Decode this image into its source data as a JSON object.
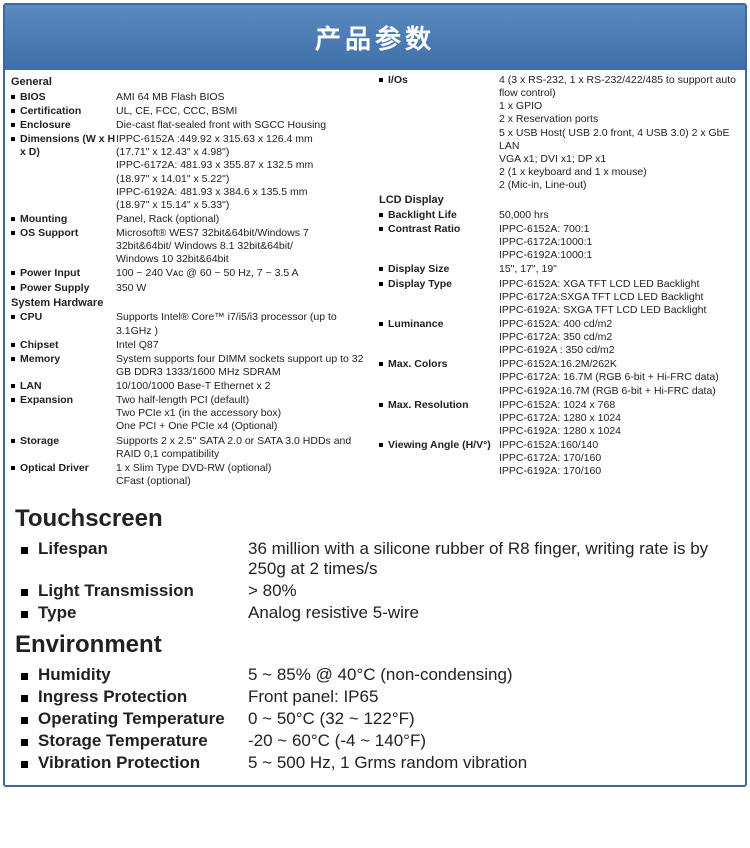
{
  "header": "产品参数",
  "colors": {
    "headerBg": "#4a7ab5",
    "border": "#3b6aa0",
    "text": "#222222"
  },
  "left": {
    "general": {
      "title": "General",
      "rows": [
        {
          "label": "BIOS",
          "val": [
            "AMI 64 MB Flash BIOS"
          ]
        },
        {
          "label": "Certification",
          "val": [
            "UL, CE, FCC, CCC, BSMI"
          ]
        },
        {
          "label": "Enclosure",
          "val": [
            "Die-cast flat-sealed front with SGCC Housing"
          ]
        },
        {
          "label": "Dimensions (W x H x D)",
          "val": [
            "IPPC-6152A :449.92 x 315.63 x 126.4 mm",
            "(17.71\" x 12.43\" x 4.98\")",
            "IPPC-6172A: 481.93 x 355.87 x 132.5 mm",
            "(18.97\" x 14.01\" x 5.22\")",
            "IPPC-6192A: 481.93 x 384.6 x 135.5 mm",
            "(18.97\" x 15.14\" x 5.33\")"
          ]
        },
        {
          "label": "Mounting",
          "val": [
            "Panel, Rack (optional)"
          ]
        },
        {
          "label": "OS Support",
          "val": [
            "Microsoft® WES7 32bit&64bit/Windows 7",
            "32bit&64bit/ Windows 8.1 32bit&64bit/",
            "Windows 10 32bit&64bit"
          ]
        },
        {
          "label": "Power Input",
          "val": [
            "100 ~ 240 Vᴀᴄ @ 60 ~ 50 Hz, 7 ~ 3.5 A"
          ]
        },
        {
          "label": "Power Supply",
          "val": [
            "350 W"
          ]
        }
      ]
    },
    "system": {
      "title": "System Hardware",
      "rows": [
        {
          "label": "CPU",
          "val": [
            "Supports Intel® Core™ i7/i5/i3 processor (up to 3.1GHz )"
          ]
        },
        {
          "label": "Chipset",
          "val": [
            "Intel Q87"
          ]
        },
        {
          "label": "Memory",
          "val": [
            "System supports four DIMM sockets support up to 32 GB DDR3 1333/1600 MHz SDRAM"
          ]
        },
        {
          "label": "LAN",
          "val": [
            "10/100/1000 Base-T Ethernet x 2"
          ]
        },
        {
          "label": "Expansion",
          "val": [
            "Two half-length PCI (default)",
            "Two PCIe x1 (in the accessory box)",
            "One PCI + One PCIe x4 (Optional)"
          ]
        },
        {
          "label": "Storage",
          "val": [
            "Supports 2 x 2.5\" SATA 2.0 or SATA 3.0 HDDs and RAID 0,1 compatibility"
          ]
        },
        {
          "label": "Optical Driver",
          "val": [
            "1 x Slim Type DVD-RW (optional)",
            "CFast (optional)"
          ]
        }
      ]
    }
  },
  "right": {
    "io": {
      "rows": [
        {
          "label": "I/Os",
          "val": [
            "4 (3 x RS-232, 1 x RS-232/422/485 to support auto flow control)",
            "1 x GPIO",
            "2 x Reservation ports",
            "5 x USB Host( USB 2.0 front, 4 USB 3.0) 2 x GbE LAN",
            "VGA x1; DVI x1; DP x1",
            "2 (1 x keyboard and 1 x mouse)",
            "2 (Mic-in, Line-out)"
          ]
        }
      ]
    },
    "lcd": {
      "title": "LCD Display",
      "rows": [
        {
          "label": "Backlight Life",
          "val": [
            "50,000 hrs"
          ]
        },
        {
          "label": "Contrast Ratio",
          "val": [
            "IPPC-6152A: 700:1",
            "IPPC-6172A:1000:1",
            "IPPC-6192A:1000:1"
          ]
        },
        {
          "label": "Display Size",
          "val": [
            "15\", 17\", 19\""
          ]
        },
        {
          "label": "Display Type",
          "val": [
            "IPPC-6152A: XGA TFT LCD LED Backlight",
            "IPPC-6172A:SXGA TFT LCD LED Backlight",
            "IPPC-6192A: SXGA TFT LCD LED Backlight"
          ]
        },
        {
          "label": "Luminance",
          "val": [
            "IPPC-6152A: 400 cd/m2",
            "IPPC-6172A: 350 cd/m2",
            "IPPC-6192A : 350 cd/m2"
          ]
        },
        {
          "label": "Max. Colors",
          "val": [
            "IPPC-6152A:16.2M/262K",
            "IPPC-6172A: 16.7M (RGB 6-bit + Hi-FRC data)",
            "IPPC-6192A:16.7M (RGB 6-bit + Hi-FRC data)"
          ]
        },
        {
          "label": "Max. Resolution",
          "val": [
            "IPPC-6152A: 1024 x 768",
            "IPPC-6172A: 1280 x 1024",
            "IPPC-6192A: 1280 x 1024"
          ]
        },
        {
          "label": "Viewing Angle (H/V°)",
          "val": [
            "IPPC-6152A:160/140",
            "IPPC-6172A: 170/160",
            "IPPC-6192A: 170/160"
          ]
        }
      ]
    }
  },
  "touchscreen": {
    "title": "Touchscreen",
    "rows": [
      {
        "label": "Lifespan",
        "val": "36 million with a silicone rubber of R8 finger, writing rate is by 250g at 2 times/s"
      },
      {
        "label": "Light Transmission",
        "val": "> 80%"
      },
      {
        "label": "Type",
        "val": "Analog resistive 5-wire"
      }
    ]
  },
  "environment": {
    "title": "Environment",
    "rows": [
      {
        "label": "Humidity",
        "val": "5 ~ 85% @ 40°C (non-condensing)"
      },
      {
        "label": "Ingress Protection",
        "val": "Front panel: IP65"
      },
      {
        "label": "Operating Temperature",
        "val": "0 ~ 50°C (32 ~ 122°F)"
      },
      {
        "label": "Storage Temperature",
        "val": "-20 ~ 60°C (-4 ~ 140°F)"
      },
      {
        "label": "Vibration Protection",
        "val": "5 ~ 500 Hz, 1 Grms random vibration"
      }
    ]
  }
}
